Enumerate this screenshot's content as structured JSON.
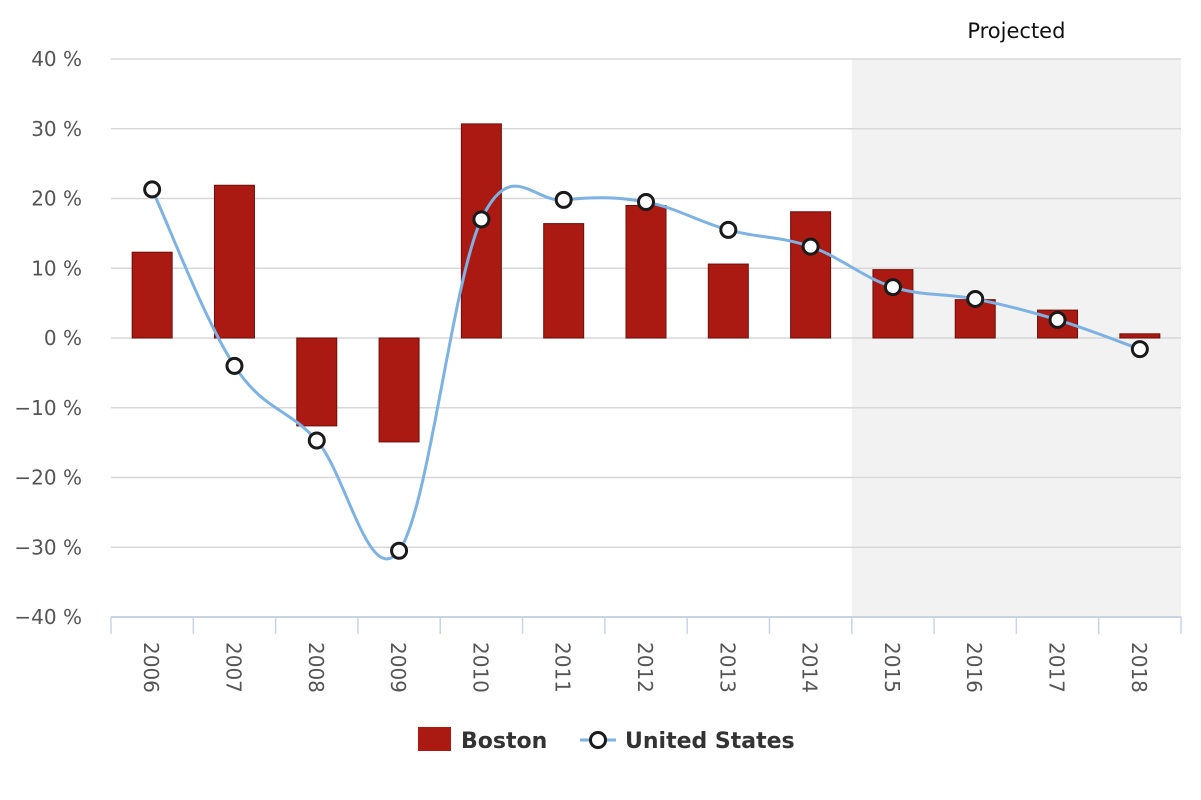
{
  "chart_data": {
    "type": "bar",
    "categories": [
      "2006",
      "2007",
      "2008",
      "2009",
      "2010",
      "2011",
      "2012",
      "2013",
      "2014",
      "2015",
      "2016",
      "2017",
      "2018"
    ],
    "series": [
      {
        "name": "Boston",
        "type": "bar",
        "color": "#aa1a12",
        "values": [
          12.3,
          21.9,
          -12.6,
          -14.9,
          30.7,
          16.4,
          19.0,
          10.6,
          18.1,
          9.8,
          5.5,
          4.0,
          0.6
        ]
      },
      {
        "name": "United States",
        "type": "line",
        "color": "#7db2e3",
        "values": [
          21.3,
          -4.0,
          -14.7,
          -30.5,
          17.0,
          19.8,
          19.5,
          15.5,
          13.1,
          7.3,
          5.6,
          2.6,
          -1.6
        ]
      }
    ],
    "projected_label": "Projected",
    "projected_from": "2015",
    "ylim": [
      -40,
      40
    ],
    "yticks": [
      40,
      30,
      20,
      10,
      0,
      -10,
      -20,
      -30,
      -40
    ],
    "ytick_labels": [
      "40 %",
      "30 %",
      "20 %",
      "10 %",
      "0 %",
      "−10 %",
      "−20 %",
      "−30 %",
      "−40 %"
    ],
    "grid": true,
    "legend_position": "bottom-center",
    "title": "",
    "xlabel": "",
    "ylabel": ""
  }
}
